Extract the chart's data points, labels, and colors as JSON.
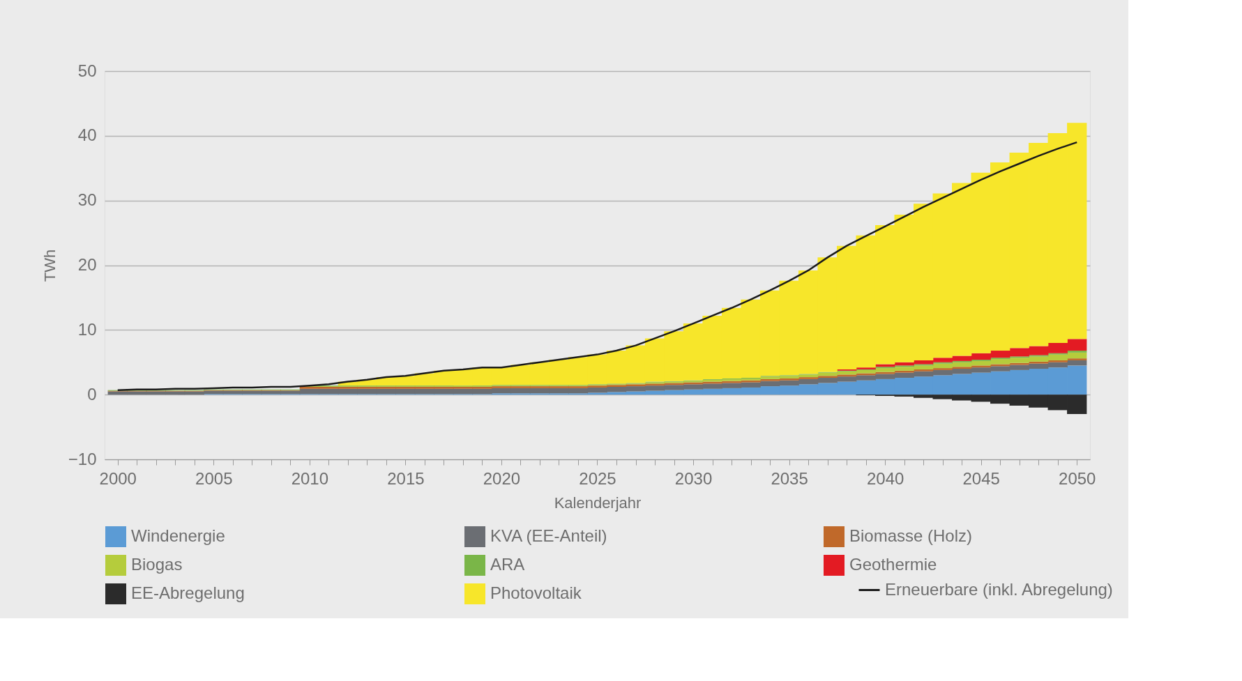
{
  "chart_data": {
    "type": "bar",
    "stacked": true,
    "xlabel": "Kalenderjahr",
    "ylabel": "TWh",
    "x": [
      2000,
      2001,
      2002,
      2003,
      2004,
      2005,
      2006,
      2007,
      2008,
      2009,
      2010,
      2011,
      2012,
      2013,
      2014,
      2015,
      2016,
      2017,
      2018,
      2019,
      2020,
      2021,
      2022,
      2023,
      2024,
      2025,
      2026,
      2027,
      2028,
      2029,
      2030,
      2031,
      2032,
      2033,
      2034,
      2035,
      2036,
      2037,
      2038,
      2039,
      2040,
      2041,
      2042,
      2043,
      2044,
      2045,
      2046,
      2047,
      2048,
      2049,
      2050
    ],
    "xlim": [
      1999.5,
      2050.5
    ],
    "xticks": [
      2000,
      {
        "value": 2001,
        "label": null
      },
      {
        "value": 2002,
        "label": null
      },
      {
        "value": 2003,
        "label": null
      },
      {
        "value": 2004,
        "label": null
      },
      2005,
      {
        "value": 2006,
        "label": null
      },
      {
        "value": 2007,
        "label": null
      },
      {
        "value": 2008,
        "label": null
      },
      {
        "value": 2009,
        "label": null
      },
      2010,
      {
        "value": 2011,
        "label": null
      },
      {
        "value": 2012,
        "label": null
      },
      {
        "value": 2013,
        "label": null
      },
      {
        "value": 2014,
        "label": null
      },
      2015,
      {
        "value": 2016,
        "label": null
      },
      {
        "value": 2017,
        "label": null
      },
      {
        "value": 2018,
        "label": null
      },
      {
        "value": 2019,
        "label": null
      },
      2020,
      {
        "value": 2021,
        "label": null
      },
      {
        "value": 2022,
        "label": null
      },
      {
        "value": 2023,
        "label": null
      },
      {
        "value": 2024,
        "label": null
      },
      2025,
      {
        "value": 2026,
        "label": null
      },
      {
        "value": 2027,
        "label": null
      },
      {
        "value": 2028,
        "label": null
      },
      {
        "value": 2029,
        "label": null
      },
      2030,
      {
        "value": 2031,
        "label": null
      },
      {
        "value": 2032,
        "label": null
      },
      {
        "value": 2033,
        "label": null
      },
      {
        "value": 2034,
        "label": null
      },
      2035,
      {
        "value": 2036,
        "label": null
      },
      {
        "value": 2037,
        "label": null
      },
      {
        "value": 2038,
        "label": null
      },
      {
        "value": 2039,
        "label": null
      },
      2040,
      {
        "value": 2041,
        "label": null
      },
      {
        "value": 2042,
        "label": null
      },
      {
        "value": 2043,
        "label": null
      },
      {
        "value": 2044,
        "label": null
      },
      2045,
      {
        "value": 2046,
        "label": null
      },
      {
        "value": 2047,
        "label": null
      },
      {
        "value": 2048,
        "label": null
      },
      {
        "value": 2049,
        "label": null
      },
      2050
    ],
    "ylim": [
      -10,
      50
    ],
    "yticks": [
      -10,
      0,
      10,
      20,
      30,
      40,
      50
    ],
    "grid": "y",
    "legend": "bottom",
    "series": [
      {
        "name": "Windenergie",
        "color": "#5b9bd5",
        "values": [
          0,
          0,
          0,
          0,
          0,
          0.1,
          0.1,
          0.1,
          0.1,
          0.1,
          0.1,
          0.1,
          0.1,
          0.1,
          0.1,
          0.1,
          0.1,
          0.1,
          0.1,
          0.1,
          0.2,
          0.2,
          0.2,
          0.2,
          0.2,
          0.3,
          0.4,
          0.5,
          0.6,
          0.7,
          0.8,
          0.9,
          1.0,
          1.1,
          1.3,
          1.4,
          1.6,
          1.8,
          2.0,
          2.2,
          2.4,
          2.6,
          2.8,
          3.0,
          3.2,
          3.4,
          3.6,
          3.8,
          4.0,
          4.2,
          4.5
        ]
      },
      {
        "name": "KVA (EE-Anteil)",
        "color": "#6b6e73",
        "values": [
          0.5,
          0.5,
          0.5,
          0.5,
          0.5,
          0.5,
          0.5,
          0.5,
          0.5,
          0.5,
          0.8,
          0.8,
          0.8,
          0.8,
          0.8,
          0.8,
          0.8,
          0.8,
          0.8,
          0.8,
          0.8,
          0.8,
          0.8,
          0.8,
          0.8,
          0.8,
          0.8,
          0.8,
          0.8,
          0.8,
          0.8,
          0.8,
          0.8,
          0.8,
          0.8,
          0.8,
          0.8,
          0.8,
          0.8,
          0.8,
          0.8,
          0.8,
          0.8,
          0.8,
          0.8,
          0.8,
          0.8,
          0.8,
          0.8,
          0.8,
          0.8
        ]
      },
      {
        "name": "Biomasse (Holz)",
        "color": "#c0692a",
        "values": [
          0.1,
          0.1,
          0.1,
          0.1,
          0.1,
          0.1,
          0.1,
          0.1,
          0.1,
          0.1,
          0.3,
          0.3,
          0.3,
          0.3,
          0.3,
          0.3,
          0.3,
          0.3,
          0.3,
          0.3,
          0.3,
          0.3,
          0.3,
          0.3,
          0.3,
          0.3,
          0.3,
          0.3,
          0.3,
          0.3,
          0.3,
          0.3,
          0.3,
          0.3,
          0.3,
          0.3,
          0.3,
          0.3,
          0.3,
          0.3,
          0.3,
          0.3,
          0.3,
          0.3,
          0.3,
          0.3,
          0.3,
          0.3,
          0.3,
          0.3,
          0.3
        ]
      },
      {
        "name": "Biogas",
        "color": "#b5cc3c",
        "values": [
          0,
          0,
          0,
          0,
          0,
          0,
          0,
          0,
          0,
          0,
          0.1,
          0.1,
          0.1,
          0.1,
          0.1,
          0.1,
          0.1,
          0.1,
          0.1,
          0.1,
          0.1,
          0.1,
          0.1,
          0.1,
          0.1,
          0.1,
          0.1,
          0.1,
          0.2,
          0.2,
          0.2,
          0.3,
          0.3,
          0.3,
          0.4,
          0.4,
          0.4,
          0.5,
          0.5,
          0.5,
          0.6,
          0.6,
          0.6,
          0.7,
          0.7,
          0.7,
          0.8,
          0.8,
          0.8,
          0.9,
          0.9
        ]
      },
      {
        "name": "ARA",
        "color": "#7ab648",
        "values": [
          0.1,
          0.1,
          0.1,
          0.1,
          0.1,
          0.1,
          0.1,
          0.1,
          0.1,
          0.1,
          0.1,
          0.1,
          0.1,
          0.1,
          0.1,
          0.1,
          0.1,
          0.1,
          0.1,
          0.1,
          0.1,
          0.1,
          0.1,
          0.1,
          0.1,
          0.1,
          0.1,
          0.1,
          0.1,
          0.1,
          0.1,
          0.1,
          0.1,
          0.1,
          0.1,
          0.1,
          0.1,
          0.1,
          0.1,
          0.1,
          0.2,
          0.2,
          0.2,
          0.2,
          0.2,
          0.2,
          0.2,
          0.2,
          0.2,
          0.2,
          0.3
        ]
      },
      {
        "name": "Geothermie",
        "color": "#e31b23",
        "values": [
          0,
          0,
          0,
          0,
          0,
          0,
          0,
          0,
          0,
          0,
          0,
          0,
          0,
          0,
          0,
          0,
          0,
          0,
          0,
          0,
          0,
          0,
          0,
          0,
          0,
          0,
          0,
          0,
          0,
          0,
          0,
          0,
          0,
          0,
          0,
          0,
          0,
          0,
          0.2,
          0.3,
          0.4,
          0.5,
          0.6,
          0.7,
          0.8,
          1.0,
          1.1,
          1.3,
          1.4,
          1.6,
          1.8
        ]
      },
      {
        "name": "EE-Abregelung",
        "color": "#2b2b2b",
        "values": [
          0,
          0,
          0,
          0,
          0,
          0,
          0,
          0,
          0,
          0,
          0,
          0,
          0,
          0,
          0,
          0,
          0,
          0,
          0,
          0,
          0,
          0,
          0,
          0,
          0,
          0,
          0,
          0,
          0,
          0,
          0,
          0,
          0,
          0,
          0,
          0,
          0,
          0,
          0,
          -0.1,
          -0.2,
          -0.3,
          -0.5,
          -0.7,
          -0.9,
          -1.1,
          -1.4,
          -1.7,
          -2.0,
          -2.4,
          -3.0
        ]
      },
      {
        "name": "Photovoltaik",
        "color": "#f7e62a",
        "values": [
          null,
          null,
          null,
          null,
          null,
          null,
          null,
          null,
          null,
          null,
          null,
          null,
          0.6,
          0.9,
          1.3,
          1.5,
          1.9,
          2.3,
          2.5,
          2.8,
          2.7,
          3.1,
          3.5,
          3.9,
          4.3,
          4.6,
          5.1,
          5.8,
          6.7,
          7.7,
          8.8,
          9.8,
          10.9,
          12.1,
          13.2,
          14.6,
          16.0,
          17.7,
          19.1,
          20.4,
          21.5,
          22.8,
          24.2,
          25.4,
          26.7,
          27.9,
          29.1,
          30.2,
          31.4,
          32.4,
          33.4
        ]
      },
      {
        "name": "Erneuerbare (inkl. Abregelung)",
        "type": "line",
        "color": "#1a1a1a",
        "line_style": "solid",
        "values": [
          0.7,
          0.8,
          0.8,
          0.9,
          0.9,
          1.0,
          1.1,
          1.1,
          1.2,
          1.2,
          1.4,
          1.6,
          2.0,
          2.3,
          2.7,
          2.9,
          3.3,
          3.7,
          3.9,
          4.2,
          4.2,
          4.6,
          5.0,
          5.4,
          5.8,
          6.2,
          6.8,
          7.6,
          8.7,
          9.8,
          11.0,
          12.2,
          13.4,
          14.7,
          16.1,
          17.6,
          19.2,
          21.2,
          23.0,
          24.5,
          26.0,
          27.5,
          29.0,
          30.4,
          31.8,
          33.2,
          34.5,
          35.7,
          36.9,
          38.0,
          39.0
        ]
      }
    ]
  }
}
